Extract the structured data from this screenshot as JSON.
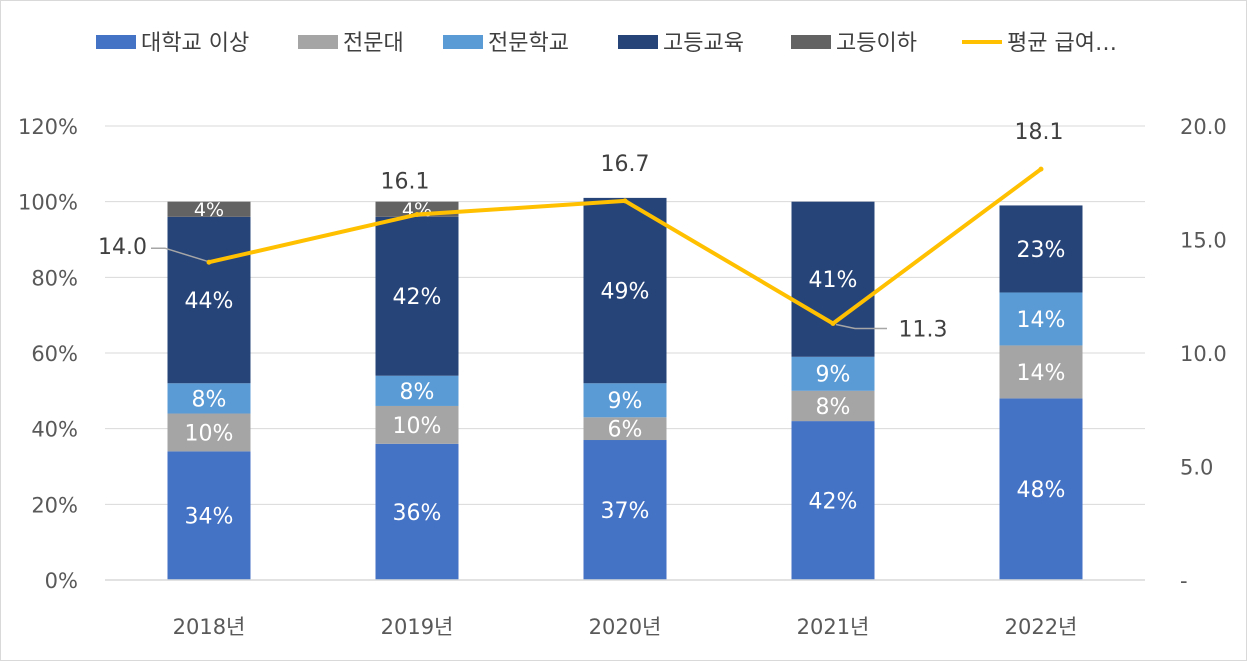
{
  "chart_data": {
    "type": "bar",
    "stacked": true,
    "categories": [
      "2018년",
      "2019년",
      "2020년",
      "2021년",
      "2022년"
    ],
    "series": [
      {
        "name": "대학교 이상",
        "values": [
          34,
          36,
          37,
          42,
          48
        ],
        "labels": [
          "34%",
          "36%",
          "37%",
          "42%",
          "48%"
        ],
        "color": "#4472C4",
        "label_color": "#ffffff"
      },
      {
        "name": "전문대",
        "values": [
          10,
          10,
          6,
          8,
          14
        ],
        "labels": [
          "10%",
          "10%",
          "6%",
          "8%",
          "14%"
        ],
        "color": "#A5A5A5",
        "label_color": "#ffffff"
      },
      {
        "name": "전문학교",
        "values": [
          8,
          8,
          9,
          9,
          14
        ],
        "labels": [
          "8%",
          "8%",
          "9%",
          "9%",
          "14%"
        ],
        "color": "#5B9BD5",
        "label_color": "#ffffff"
      },
      {
        "name": "고등교육",
        "values": [
          44,
          42,
          49,
          41,
          23
        ],
        "labels": [
          "44%",
          "42%",
          "49%",
          "41%",
          "23%"
        ],
        "color": "#264478",
        "label_color": "#ffffff"
      },
      {
        "name": "고등이하",
        "values": [
          4,
          4,
          0,
          0,
          0
        ],
        "labels": [
          "4%",
          "4%",
          "",
          "",
          ""
        ],
        "color": "#636363",
        "label_color": "#ffffff"
      }
    ],
    "line_series": {
      "name": "평균 급여…",
      "values": [
        14.0,
        16.1,
        16.7,
        11.3,
        18.1
      ],
      "labels": [
        "14.0",
        "16.1",
        "16.7",
        "11.3",
        "18.1"
      ],
      "color": "#FFC000",
      "axis": "right"
    },
    "y_left": {
      "ticks": [
        0,
        20,
        40,
        60,
        80,
        100,
        120
      ],
      "tick_labels": [
        "0%",
        "20%",
        "40%",
        "60%",
        "80%",
        "100%",
        "120%"
      ],
      "ylim": [
        0,
        120
      ]
    },
    "y_right": {
      "ticks": [
        0,
        5,
        10,
        15,
        20
      ],
      "tick_labels": [
        "-",
        "5.0",
        "10.0",
        "15.0",
        "20.0"
      ],
      "ylim": [
        0,
        20
      ]
    },
    "legend_position": "top",
    "grid": true
  }
}
